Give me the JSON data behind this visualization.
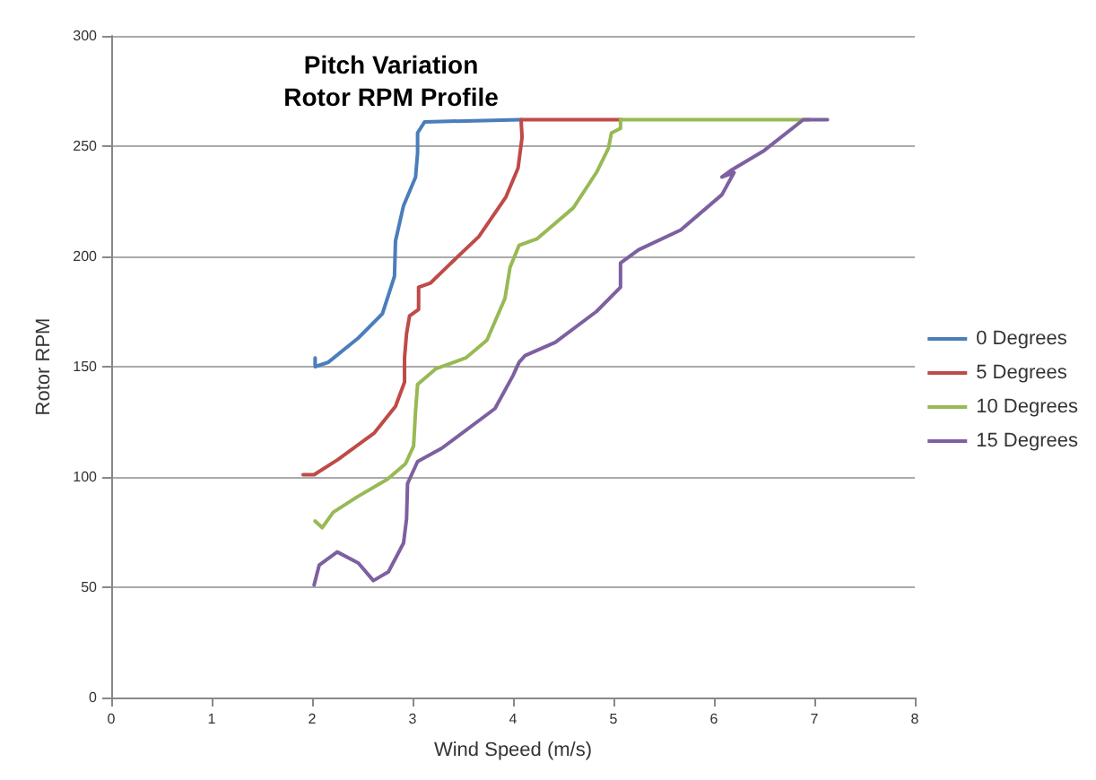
{
  "chart_data": {
    "type": "line",
    "title": "Pitch Variation\nRotor RPM Profile",
    "xlabel": "Wind Speed (m/s)",
    "ylabel": "Rotor RPM",
    "xlim": [
      0,
      8
    ],
    "xticks": [
      0,
      1,
      2,
      3,
      4,
      5,
      6,
      7,
      8
    ],
    "ylim": [
      0,
      300
    ],
    "yticks": [
      0,
      50,
      100,
      150,
      200,
      250,
      300
    ],
    "grid": "y",
    "legend": "right",
    "marker": "none",
    "line_style": "solid",
    "series": [
      {
        "name": "0 Degrees",
        "color": "#4a7ebb",
        "x": [
          2.03,
          2.03,
          2.16,
          2.46,
          2.7,
          2.82,
          2.83,
          2.91,
          3.03,
          3.05,
          3.05,
          3.12,
          4.08
        ],
        "values": [
          154,
          150,
          152,
          163,
          174,
          191,
          207,
          223,
          236,
          247,
          256,
          261,
          262
        ]
      },
      {
        "name": "5 Degrees",
        "color": "#be4b48",
        "x": [
          1.91,
          2.02,
          2.26,
          2.62,
          2.83,
          2.92,
          2.92,
          2.94,
          2.97,
          3.06,
          3.06,
          3.18,
          3.36,
          3.66,
          3.93,
          4.05,
          4.09,
          4.08,
          5.08
        ],
        "values": [
          101,
          101,
          108,
          120,
          132,
          143,
          154,
          165,
          173,
          176,
          186,
          188,
          196,
          209,
          227,
          240,
          254,
          262,
          262
        ]
      },
      {
        "name": "10 Degrees",
        "color": "#98b954",
        "x": [
          2.03,
          2.1,
          2.21,
          2.45,
          2.75,
          2.93,
          3.01,
          3.03,
          3.05,
          3.23,
          3.53,
          3.74,
          3.92,
          3.97,
          4.06,
          4.24,
          4.6,
          4.83,
          4.95,
          4.98,
          5.07,
          5.07,
          6.95
        ],
        "values": [
          80,
          77,
          84,
          91,
          99,
          106,
          114,
          130,
          142,
          149,
          154,
          162,
          181,
          195,
          205,
          208,
          222,
          238,
          249,
          256,
          258,
          262,
          262
        ]
      },
      {
        "name": "15 Degrees",
        "color": "#7d60a0",
        "x": [
          2.02,
          2.07,
          2.25,
          2.46,
          2.61,
          2.76,
          2.91,
          2.94,
          2.95,
          2.99,
          3.05,
          3.29,
          3.82,
          4.0,
          4.06,
          4.12,
          4.42,
          4.83,
          5.07,
          5.07,
          5.25,
          5.67,
          6.08,
          6.2,
          6.08,
          6.17,
          6.5,
          6.89,
          7.13
        ],
        "values": [
          51,
          60,
          66,
          61,
          53,
          57,
          70,
          81,
          97,
          101,
          107,
          113,
          131,
          146,
          152,
          155,
          161,
          175,
          186,
          197,
          203,
          212,
          228,
          238,
          236,
          239,
          248,
          262,
          262
        ]
      }
    ]
  }
}
